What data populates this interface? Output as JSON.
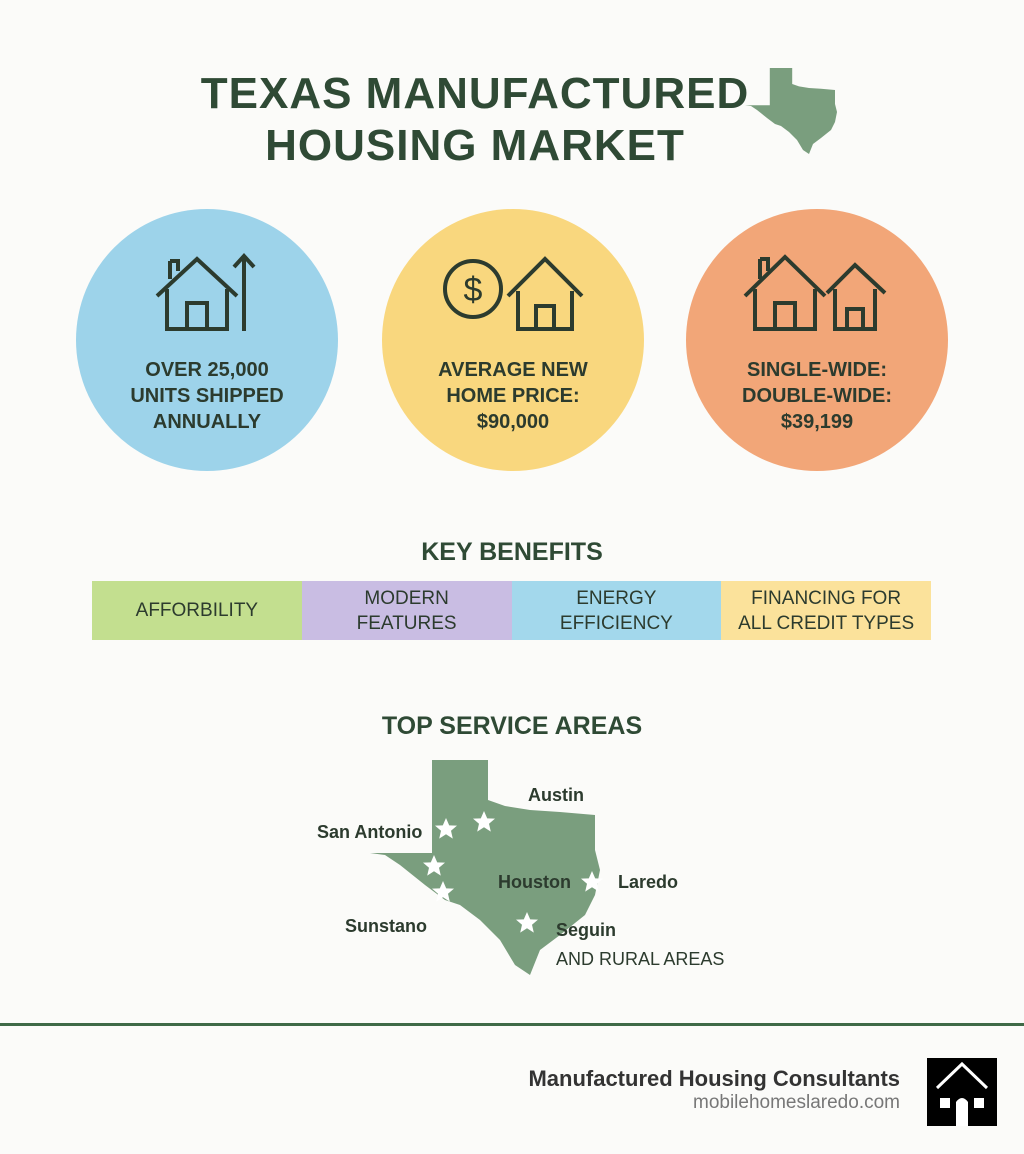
{
  "header": {
    "title_line1": "TEXAS MANUFACTURED",
    "title_line2": "HOUSING MARKET",
    "icon": "texas-map-icon"
  },
  "colors": {
    "title": "#2f4a35",
    "map": "#7a9e7e",
    "blue": "#9dd3ea",
    "yellow": "#f9d77e",
    "orange": "#f2a678",
    "green": "#c3df8f",
    "purple": "#c9bde3"
  },
  "stats": [
    {
      "icon": "house-growth-arrow-icon",
      "lines": [
        "OVER 25,000",
        "UNITS SHIPPED",
        "ANNUALLY"
      ]
    },
    {
      "icon": "dollar-house-icon",
      "lines": [
        "AVERAGE NEW",
        "HOME PRICE:",
        "$90,000"
      ]
    },
    {
      "icon": "two-houses-icon",
      "lines": [
        "SINGLE-WIDE:",
        "DOUBLE-WIDE:",
        "$39,199"
      ]
    }
  ],
  "benefits": {
    "heading": "KEY BENEFITS",
    "items": [
      {
        "lines": [
          "AFFORBILITY"
        ]
      },
      {
        "lines": [
          "MODERN",
          "FEATURES"
        ]
      },
      {
        "lines": [
          "ENERGY",
          "EFFICIENCY"
        ]
      },
      {
        "lines": [
          "FINANCING FOR",
          "ALL CREDIT TYPES"
        ]
      }
    ]
  },
  "service_areas": {
    "heading": "TOP SERVICE AREAS",
    "cities": [
      "Austin",
      "San Antonio",
      "Houston",
      "Laredo",
      "Sunstano",
      "Seguin"
    ],
    "extra": "AND RURAL AREAS"
  },
  "footer": {
    "brand": "Manufactured Housing Consultants",
    "url": "mobilehomeslaredo.com",
    "logo": "house-logo-icon"
  }
}
